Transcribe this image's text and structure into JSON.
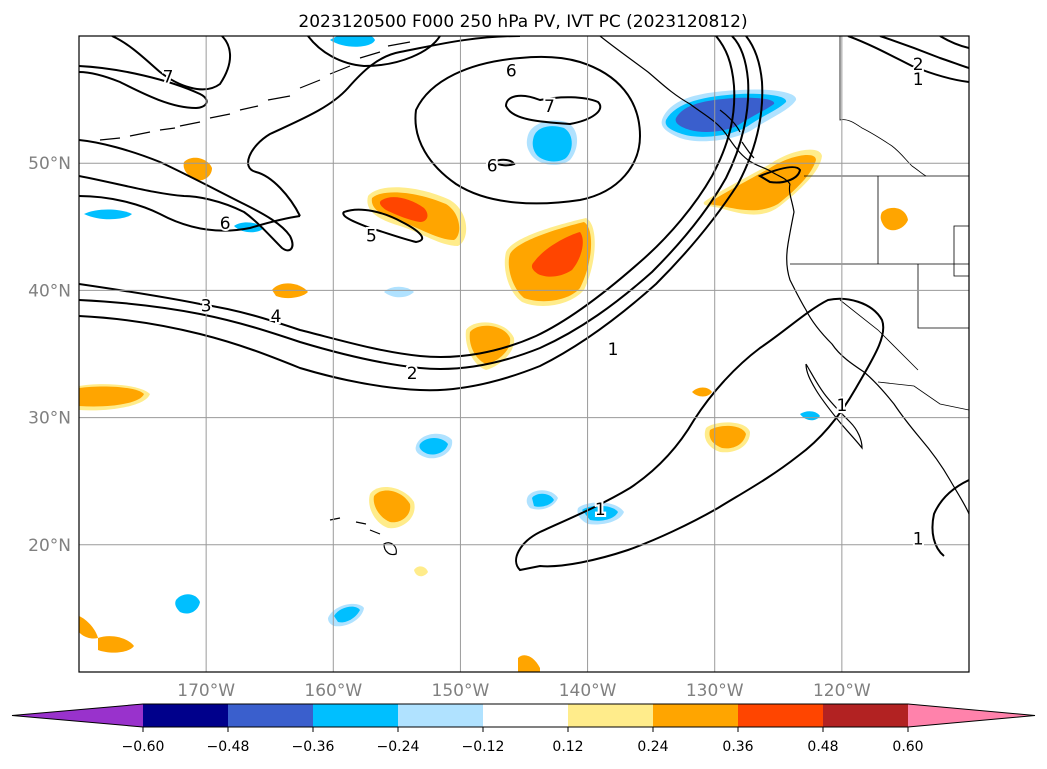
{
  "title": "2023120500 F000 250 hPa PV, IVT PC (2023120812)",
  "map": {
    "lon_min": -180,
    "lon_max": -110,
    "lat_min": 10,
    "lat_max": 60,
    "lat_ticks": [
      {
        "value": 20,
        "label": "20°N"
      },
      {
        "value": 30,
        "label": "30°N"
      },
      {
        "value": 40,
        "label": "40°N"
      },
      {
        "value": 50,
        "label": "50°N"
      }
    ],
    "lon_ticks": [
      {
        "value": -170,
        "label": "170°W"
      },
      {
        "value": -160,
        "label": "160°W"
      },
      {
        "value": -150,
        "label": "150°W"
      },
      {
        "value": -140,
        "label": "140°W"
      },
      {
        "value": -130,
        "label": "130°W"
      },
      {
        "value": -120,
        "label": "120°W"
      }
    ],
    "contour_labels": [
      {
        "text": "7",
        "lon": -173,
        "lat": 56.8
      },
      {
        "text": "6",
        "lon": -146,
        "lat": 57.3
      },
      {
        "text": "7",
        "lon": -143,
        "lat": 54.5
      },
      {
        "text": "6",
        "lon": -147.5,
        "lat": 49.8
      },
      {
        "text": "6",
        "lon": -168.5,
        "lat": 45.3
      },
      {
        "text": "5",
        "lon": -157,
        "lat": 44.3
      },
      {
        "text": "3",
        "lon": -170,
        "lat": 38.8
      },
      {
        "text": "4",
        "lon": -164.5,
        "lat": 38
      },
      {
        "text": "2",
        "lon": -153.8,
        "lat": 33.5
      },
      {
        "text": "1",
        "lon": -138,
        "lat": 35.4
      },
      {
        "text": "1",
        "lon": -139,
        "lat": 22.8
      },
      {
        "text": "1",
        "lon": -120,
        "lat": 31
      },
      {
        "text": "2",
        "lon": -114,
        "lat": 57.8
      },
      {
        "text": "1",
        "lon": -114,
        "lat": 56.6
      },
      {
        "text": "1",
        "lon": -114,
        "lat": 20.5
      }
    ]
  },
  "colorbar": {
    "ticks": [
      "−0.60",
      "−0.48",
      "−0.36",
      "−0.24",
      "−0.12",
      "0.12",
      "0.24",
      "0.36",
      "0.48",
      "0.60"
    ],
    "colors": [
      "#9932cc",
      "#00008b",
      "#3a5fcd",
      "#00bfff",
      "#b0e2ff",
      "#ffffff",
      "#ffec8b",
      "#ffa500",
      "#ff4500",
      "#b22222",
      "#ff82ab"
    ]
  }
}
